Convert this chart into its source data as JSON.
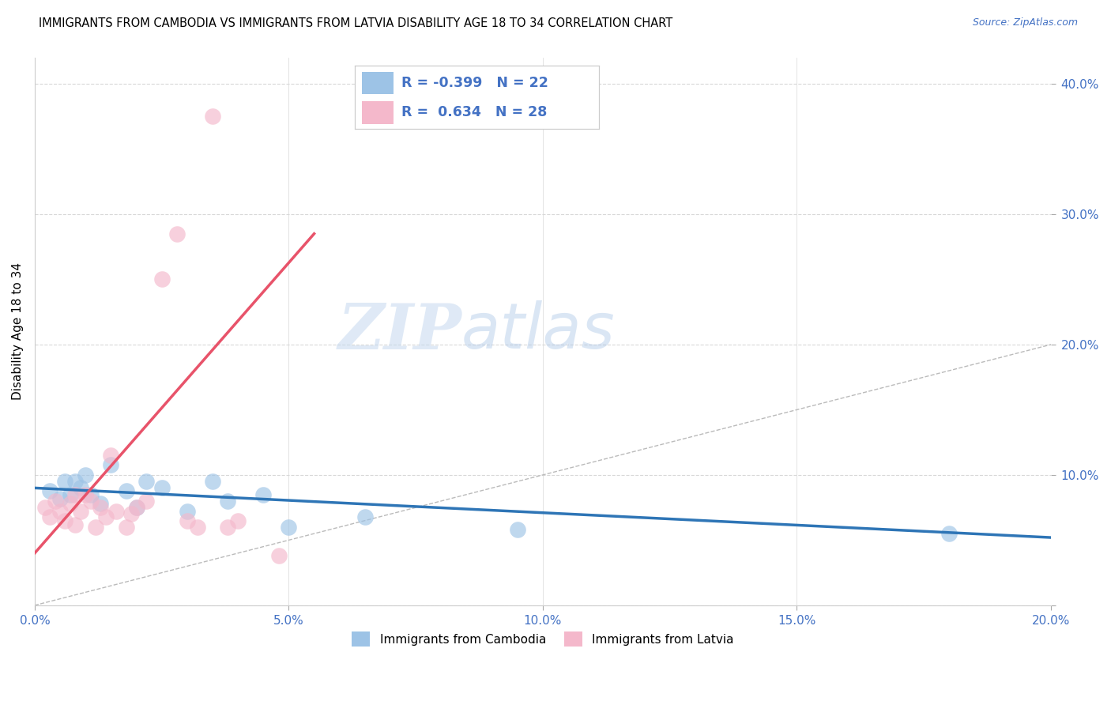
{
  "title": "IMMIGRANTS FROM CAMBODIA VS IMMIGRANTS FROM LATVIA DISABILITY AGE 18 TO 34 CORRELATION CHART",
  "source": "Source: ZipAtlas.com",
  "tick_color": "#4472C4",
  "ylabel": "Disability Age 18 to 34",
  "watermark_zip": "ZIP",
  "watermark_atlas": "atlas",
  "xlim": [
    0.0,
    0.2
  ],
  "ylim": [
    0.0,
    0.42
  ],
  "xticks": [
    0.0,
    0.05,
    0.1,
    0.15,
    0.2
  ],
  "xtick_labels": [
    "0.0%",
    "5.0%",
    "10.0%",
    "15.0%",
    "20.0%"
  ],
  "yticks": [
    0.0,
    0.1,
    0.2,
    0.3,
    0.4
  ],
  "ytick_labels": [
    "",
    "10.0%",
    "20.0%",
    "30.0%",
    "40.0%"
  ],
  "grid_color": "#d8d8d8",
  "legend_R_cambodia": "-0.399",
  "legend_N_cambodia": "22",
  "legend_R_latvia": "0.634",
  "legend_N_latvia": "28",
  "cambodia_color": "#9DC3E6",
  "latvia_color": "#F4B8CB",
  "trendline_cambodia_color": "#2E75B6",
  "trendline_latvia_color": "#E8536A",
  "diagonal_color": "#bbbbbb",
  "cambodia_points_x": [
    0.003,
    0.005,
    0.006,
    0.007,
    0.008,
    0.009,
    0.01,
    0.011,
    0.013,
    0.015,
    0.018,
    0.02,
    0.022,
    0.025,
    0.03,
    0.035,
    0.038,
    0.045,
    0.05,
    0.065,
    0.095,
    0.18
  ],
  "cambodia_points_y": [
    0.088,
    0.082,
    0.095,
    0.085,
    0.095,
    0.09,
    0.1,
    0.085,
    0.078,
    0.108,
    0.088,
    0.075,
    0.095,
    0.09,
    0.072,
    0.095,
    0.08,
    0.085,
    0.06,
    0.068,
    0.058,
    0.055
  ],
  "latvia_points_x": [
    0.002,
    0.003,
    0.004,
    0.005,
    0.006,
    0.007,
    0.008,
    0.008,
    0.009,
    0.01,
    0.011,
    0.012,
    0.013,
    0.014,
    0.015,
    0.016,
    0.018,
    0.019,
    0.02,
    0.022,
    0.025,
    0.028,
    0.03,
    0.032,
    0.035,
    0.038,
    0.04,
    0.048
  ],
  "latvia_points_y": [
    0.075,
    0.068,
    0.08,
    0.072,
    0.065,
    0.078,
    0.085,
    0.062,
    0.072,
    0.085,
    0.08,
    0.06,
    0.075,
    0.068,
    0.115,
    0.072,
    0.06,
    0.07,
    0.075,
    0.08,
    0.25,
    0.285,
    0.065,
    0.06,
    0.375,
    0.06,
    0.065,
    0.038
  ],
  "latvia_trendline_x": [
    0.0,
    0.055
  ],
  "latvia_trendline_y": [
    0.04,
    0.285
  ],
  "cambodia_trendline_x": [
    0.0,
    0.2
  ],
  "cambodia_trendline_y": [
    0.09,
    0.052
  ]
}
